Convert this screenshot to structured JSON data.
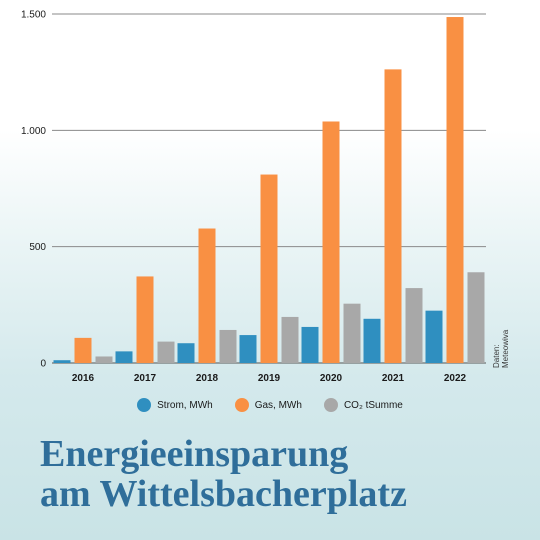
{
  "chart_data": {
    "type": "bar",
    "categories": [
      "2016",
      "2017",
      "2018",
      "2019",
      "2020",
      "2021",
      "2022"
    ],
    "series": [
      {
        "name": "Strom, MWh",
        "color": "#2f8fc0",
        "values": [
          12,
          50,
          85,
          120,
          155,
          190,
          225
        ]
      },
      {
        "name": "Gas, MWh",
        "color": "#f99043",
        "values": [
          108,
          372,
          578,
          810,
          1038,
          1262,
          1487
        ]
      },
      {
        "name": "CO₂ tSumme",
        "color": "#a8a8a8",
        "values": [
          28,
          92,
          142,
          198,
          255,
          322,
          390
        ]
      }
    ],
    "yticks": [
      {
        "value": 0,
        "label": "0"
      },
      {
        "value": 500,
        "label": "500"
      },
      {
        "value": 1000,
        "label": "1.000"
      },
      {
        "value": 1500,
        "label": "1.500"
      }
    ],
    "ylim": [
      0,
      1500
    ],
    "grid": true,
    "legend_position": "bottom-center",
    "title_lines": [
      "Energieeinsparung",
      "am Wittelsbacherplatz"
    ],
    "source_lines": [
      "Daten:",
      "Meteowiva"
    ]
  }
}
